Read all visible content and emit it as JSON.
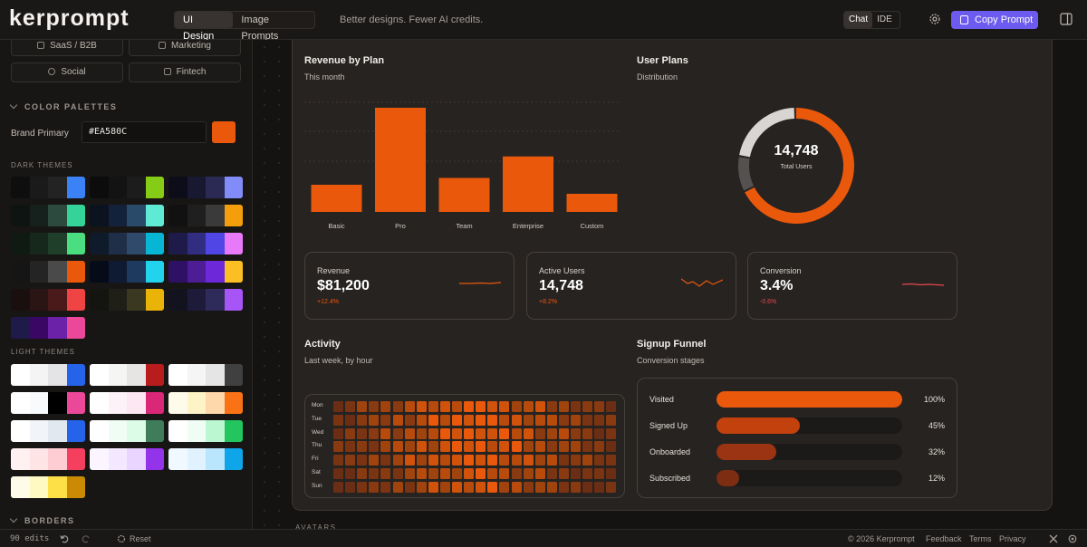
{
  "header": {
    "logo": "kerprompt",
    "modes": [
      "UI Design",
      "Image Prompts"
    ],
    "tagline": "Better designs. Fewer AI credits.",
    "views": [
      "Chat",
      "IDE"
    ],
    "copy_label": "Copy Prompt",
    "accent": "#6D5BF0"
  },
  "sidebar": {
    "categories": [
      "SaaS / B2B",
      "Marketing",
      "Social",
      "Fintech"
    ],
    "color_section": "COLOR PALETTES",
    "brand_label": "Brand Primary",
    "brand_hex": "#EA580C",
    "dark_label": "DARK THEMES",
    "light_label": "LIGHT THEMES",
    "borders_section": "BORDERS",
    "dark_palettes": [
      [
        "#0e0e0e",
        "#1a1a1a",
        "#232323",
        "#3b82f6"
      ],
      [
        "#0c0c0c",
        "#131313",
        "#1c1c1c",
        "#84cc16"
      ],
      [
        "#0d0d1a",
        "#181830",
        "#2a2a55",
        "#818cf8"
      ],
      [
        "#0e1412",
        "#16201c",
        "#2c4a3e",
        "#34d399"
      ],
      [
        "#0b1220",
        "#13223a",
        "#2a4a6a",
        "#5eead4"
      ],
      [
        "#111111",
        "#1f1f1f",
        "#3a3a3a",
        "#f59e0b"
      ],
      [
        "#0f1a12",
        "#15281b",
        "#1f3f2a",
        "#4ade80"
      ],
      [
        "#0f1a2a",
        "#1e2f47",
        "#2f4a6a",
        "#06b6d4"
      ],
      [
        "#1e1b4b",
        "#312e81",
        "#4f46e5",
        "#e879f9"
      ],
      [
        "#151515",
        "#242424",
        "#4a4a4a",
        "#ea580c"
      ],
      [
        "#060b1a",
        "#0f1b33",
        "#1e3a5f",
        "#22d3ee"
      ],
      [
        "#2e1065",
        "#4c1d95",
        "#6d28d9",
        "#fbbf24"
      ],
      [
        "#1a0f0f",
        "#2a1414",
        "#4a1a1a",
        "#ef4444"
      ],
      [
        "#141410",
        "#1f1f18",
        "#3a3820",
        "#eab308"
      ],
      [
        "#13131f",
        "#1e1b3a",
        "#2e2a5a",
        "#a855f7"
      ],
      [
        "#1e1b4b",
        "#3b0764",
        "#6b21a8",
        "#ec4899"
      ]
    ],
    "light_palettes": [
      [
        "#ffffff",
        "#f4f4f5",
        "#e4e4e7",
        "#2563eb"
      ],
      [
        "#ffffff",
        "#f5f5f4",
        "#e7e5e4",
        "#b91c1c"
      ],
      [
        "#ffffff",
        "#f5f5f5",
        "#e5e5e5",
        "#404040"
      ],
      [
        "#ffffff",
        "#f9fafb",
        "#000000",
        "#ec4899"
      ],
      [
        "#ffffff",
        "#fdf2f8",
        "#fce7f3",
        "#db2777"
      ],
      [
        "#fffbeb",
        "#fef3c7",
        "#fed7aa",
        "#f97316"
      ],
      [
        "#ffffff",
        "#f1f5f9",
        "#e2e8f0",
        "#2563eb"
      ],
      [
        "#ffffff",
        "#f0fdf4",
        "#dcfce7",
        "#3f7d5a"
      ],
      [
        "#ffffff",
        "#f0fdf4",
        "#bbf7d0",
        "#22c55e"
      ],
      [
        "#fff1f2",
        "#ffe4e6",
        "#fecdd3",
        "#f43f5e"
      ],
      [
        "#faf5ff",
        "#f3e8ff",
        "#e9d5ff",
        "#9333ea"
      ],
      [
        "#f0f9ff",
        "#e0f2fe",
        "#bae6fd",
        "#0ea5e9"
      ],
      [
        "#fefce8",
        "#fef9c3",
        "#fde047",
        "#ca8a04"
      ]
    ]
  },
  "main": {
    "revenue": {
      "title": "Revenue by Plan",
      "subtitle": "This month",
      "chart_data": {
        "type": "bar",
        "categories": [
          "Basic",
          "Pro",
          "Team",
          "Enterprise",
          "Custom"
        ],
        "values": [
          24,
          92,
          30,
          49,
          16
        ],
        "ylim": [
          0,
          100
        ],
        "color": "#EA580C"
      }
    },
    "plans": {
      "title": "User Plans",
      "subtitle": "Distribution",
      "total": "14,748",
      "total_label": "Total Users",
      "chart_data": {
        "type": "pie",
        "values": [
          68,
          10,
          22
        ],
        "colors": [
          "#EA580C",
          "#555150",
          "#D8D5D2"
        ]
      }
    },
    "kpis": [
      {
        "label": "Revenue",
        "value": "$81,200",
        "delta": "+12.4%",
        "delta_color": "#EA580C"
      },
      {
        "label": "Active Users",
        "value": "14,748",
        "delta": "+8.2%",
        "delta_color": "#EA580C"
      },
      {
        "label": "Conversion",
        "value": "3.4%",
        "delta": "-0.6%",
        "delta_color": "#E5484D"
      }
    ],
    "activity": {
      "title": "Activity",
      "subtitle": "Last week, by hour",
      "days": [
        "Mon",
        "Tue",
        "Wed",
        "Thu",
        "Fri",
        "Sat",
        "Sun"
      ]
    },
    "funnel": {
      "title": "Signup Funnel",
      "subtitle": "Conversion stages",
      "stages": [
        {
          "label": "Visited",
          "pct": "100%",
          "value": 100,
          "color": "#EA580C"
        },
        {
          "label": "Signed Up",
          "pct": "45%",
          "value": 45,
          "color": "#C2410C"
        },
        {
          "label": "Onboarded",
          "pct": "32%",
          "value": 32,
          "color": "#9A3412"
        },
        {
          "label": "Subscribed",
          "pct": "12%",
          "value": 12,
          "color": "#7C2D12"
        }
      ]
    },
    "next_section": "AVATARS"
  },
  "footer": {
    "edits": "90 edits",
    "reset": "Reset",
    "copyright": "© 2026 Kerprompt",
    "links": [
      "Feedback",
      "Terms",
      "Privacy"
    ]
  }
}
